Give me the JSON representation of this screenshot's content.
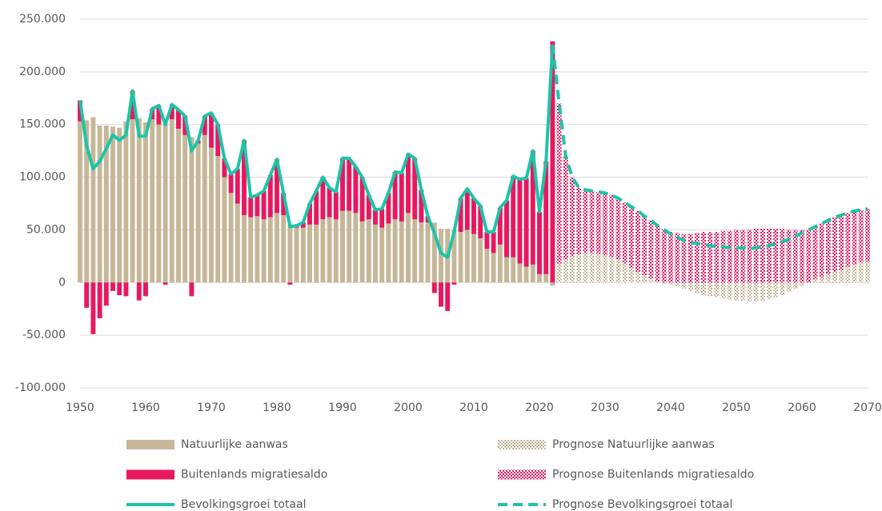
{
  "chart_data": {
    "type": "bar",
    "x": [
      1950,
      1951,
      1952,
      1953,
      1954,
      1955,
      1956,
      1957,
      1958,
      1959,
      1960,
      1961,
      1962,
      1963,
      1964,
      1965,
      1966,
      1967,
      1968,
      1969,
      1970,
      1971,
      1972,
      1973,
      1974,
      1975,
      1976,
      1977,
      1978,
      1979,
      1980,
      1981,
      1982,
      1983,
      1984,
      1985,
      1986,
      1987,
      1988,
      1989,
      1990,
      1991,
      1992,
      1993,
      1994,
      1995,
      1996,
      1997,
      1998,
      1999,
      2000,
      2001,
      2002,
      2003,
      2004,
      2005,
      2006,
      2007,
      2008,
      2009,
      2010,
      2011,
      2012,
      2013,
      2014,
      2015,
      2016,
      2017,
      2018,
      2019,
      2020,
      2021,
      2022,
      2023,
      2024,
      2025,
      2026,
      2027,
      2028,
      2029,
      2030,
      2031,
      2032,
      2033,
      2034,
      2035,
      2036,
      2037,
      2038,
      2039,
      2040,
      2041,
      2042,
      2043,
      2044,
      2045,
      2046,
      2047,
      2048,
      2049,
      2050,
      2051,
      2052,
      2053,
      2054,
      2055,
      2056,
      2057,
      2058,
      2059,
      2060,
      2061,
      2062,
      2063,
      2064,
      2065,
      2066,
      2067,
      2068,
      2069,
      2070
    ],
    "xlim": [
      1950,
      2070
    ],
    "xticks": [
      1950,
      1960,
      1970,
      1980,
      1990,
      2000,
      2010,
      2020,
      2030,
      2040,
      2050,
      2060,
      2070
    ],
    "ylim": [
      -100000,
      250000
    ],
    "yticks": [
      {
        "value": -100000,
        "label": "-100.000"
      },
      {
        "value": -50000,
        "label": "-50.000"
      },
      0,
      {
        "value": 50000,
        "label": "50.000"
      },
      {
        "value": 100000,
        "label": "100.000"
      },
      {
        "value": 150000,
        "label": "150.000"
      },
      {
        "value": 200000,
        "label": "200.000"
      },
      {
        "value": 250000,
        "label": "250.000"
      }
    ],
    "grid": true,
    "series": [
      {
        "name": "Natuurlijke aanwas",
        "color": "#c6b798",
        "mark": "bar",
        "pattern": false,
        "dashed": false,
        "values": [
          153000,
          154000,
          157000,
          149000,
          149000,
          148000,
          147000,
          153000,
          155000,
          156000,
          152000,
          155000,
          150000,
          152000,
          155000,
          146000,
          140000,
          138000,
          132000,
          140000,
          128000,
          120000,
          100000,
          85000,
          75000,
          64000,
          62000,
          63000,
          60000,
          62000,
          66000,
          64000,
          55000,
          52000,
          52000,
          55000,
          55000,
          60000,
          62000,
          60000,
          68000,
          68000,
          66000,
          58000,
          60000,
          55000,
          52000,
          56000,
          60000,
          58000,
          66000,
          60000,
          57000,
          57000,
          57000,
          51000,
          51000,
          50000,
          48000,
          50000,
          46000,
          42000,
          32000,
          28000,
          36000,
          24000,
          24000,
          18000,
          15000,
          17000,
          8000,
          8000,
          -3000,
          null,
          null,
          null,
          null,
          null,
          null,
          null,
          null,
          null,
          null,
          null,
          null,
          null,
          null,
          null,
          null,
          null,
          null,
          null,
          null,
          null,
          null,
          null,
          null,
          null,
          null,
          null,
          null,
          null,
          null,
          null,
          null,
          null,
          null,
          null,
          null,
          null,
          null,
          null,
          null,
          null,
          null,
          null,
          null,
          null,
          null,
          null,
          null
        ]
      },
      {
        "name": "Buitenlands migratiesaldo",
        "color": "#e8185f",
        "mark": "bar",
        "pattern": false,
        "dashed": false,
        "values": [
          20000,
          -24000,
          -49000,
          -34000,
          -22000,
          -8000,
          -12000,
          -13000,
          27000,
          -17000,
          -13000,
          10000,
          18000,
          -2000,
          14000,
          18000,
          18000,
          -13000,
          3000,
          18000,
          33000,
          30000,
          18000,
          18000,
          33000,
          71000,
          19000,
          20000,
          27000,
          40000,
          51000,
          21000,
          -2000,
          2000,
          5000,
          20000,
          32000,
          40000,
          28000,
          26000,
          50000,
          50000,
          44000,
          42000,
          23000,
          14000,
          18000,
          29000,
          45000,
          46000,
          56000,
          58000,
          31000,
          6000,
          -10000,
          -23000,
          -27000,
          -2000,
          32000,
          39000,
          34000,
          31000,
          16000,
          20000,
          35000,
          54000,
          77000,
          80000,
          84000,
          108000,
          59000,
          107000,
          229000,
          null,
          null,
          null,
          null,
          null,
          null,
          null,
          null,
          null,
          null,
          null,
          null,
          null,
          null,
          null,
          null,
          null,
          null,
          null,
          null,
          null,
          null,
          null,
          null,
          null,
          null,
          null,
          null,
          null,
          null,
          null,
          null,
          null,
          null,
          null,
          null,
          null,
          null,
          null,
          null,
          null,
          null,
          null,
          null,
          null,
          null,
          null,
          null
        ]
      },
      {
        "name": "Bevolkingsgroei totaal",
        "color": "#1dc4a8",
        "mark": "line",
        "pattern": false,
        "dashed": false,
        "values": [
          173000,
          130000,
          108000,
          115000,
          127000,
          140000,
          135000,
          140000,
          182000,
          139000,
          139000,
          165000,
          168000,
          150000,
          169000,
          164000,
          158000,
          125000,
          135000,
          158000,
          161000,
          150000,
          118000,
          103000,
          108000,
          135000,
          81000,
          83000,
          87000,
          102000,
          117000,
          85000,
          53000,
          54000,
          57000,
          75000,
          87000,
          100000,
          90000,
          86000,
          118000,
          118000,
          110000,
          100000,
          83000,
          69000,
          70000,
          85000,
          105000,
          104000,
          122000,
          118000,
          88000,
          63000,
          47000,
          28000,
          24000,
          48000,
          80000,
          89000,
          80000,
          73000,
          48000,
          48000,
          71000,
          78000,
          101000,
          98000,
          99000,
          125000,
          67000,
          115000,
          226000,
          null,
          null,
          null,
          null,
          null,
          null,
          null,
          null,
          null,
          null,
          null,
          null,
          null,
          null,
          null,
          null,
          null,
          null,
          null,
          null,
          null,
          null,
          null,
          null,
          null,
          null,
          null,
          null,
          null,
          null,
          null,
          null,
          null,
          null,
          null,
          null,
          null,
          null,
          null,
          null,
          null,
          null,
          null,
          null,
          null,
          null,
          null,
          null
        ]
      },
      {
        "name": "Prognose Natuurlijke aanwas",
        "color": "#c6b798",
        "mark": "bar",
        "pattern": true,
        "dashed": false,
        "values": [
          null,
          null,
          null,
          null,
          null,
          null,
          null,
          null,
          null,
          null,
          null,
          null,
          null,
          null,
          null,
          null,
          null,
          null,
          null,
          null,
          null,
          null,
          null,
          null,
          null,
          null,
          null,
          null,
          null,
          null,
          null,
          null,
          null,
          null,
          null,
          null,
          null,
          null,
          null,
          null,
          null,
          null,
          null,
          null,
          null,
          null,
          null,
          null,
          null,
          null,
          null,
          null,
          null,
          null,
          null,
          null,
          null,
          null,
          null,
          null,
          null,
          null,
          null,
          null,
          null,
          null,
          null,
          null,
          null,
          null,
          null,
          null,
          null,
          18000,
          22000,
          25000,
          27000,
          28000,
          28000,
          27000,
          26000,
          24000,
          22000,
          18000,
          14000,
          10000,
          7000,
          4000,
          1000,
          -1000,
          -2000,
          -4000,
          -6000,
          -8000,
          -10000,
          -12000,
          -13000,
          -14000,
          -15000,
          -16000,
          -17000,
          -17000,
          -18000,
          -18000,
          -17000,
          -16000,
          -14000,
          -12000,
          -9000,
          -6000,
          -3000,
          0,
          3000,
          5000,
          8000,
          10000,
          12000,
          15000,
          17000,
          19000,
          20000
        ]
      },
      {
        "name": "Prognose Buitenlands migratiesaldo",
        "color": "#e8185f",
        "mark": "bar",
        "pattern": true,
        "dashed": false,
        "values": [
          null,
          null,
          null,
          null,
          null,
          null,
          null,
          null,
          null,
          null,
          null,
          null,
          null,
          null,
          null,
          null,
          null,
          null,
          null,
          null,
          null,
          null,
          null,
          null,
          null,
          null,
          null,
          null,
          null,
          null,
          null,
          null,
          null,
          null,
          null,
          null,
          null,
          null,
          null,
          null,
          null,
          null,
          null,
          null,
          null,
          null,
          null,
          null,
          null,
          null,
          null,
          null,
          null,
          null,
          null,
          null,
          null,
          null,
          null,
          null,
          null,
          null,
          null,
          null,
          null,
          null,
          null,
          null,
          null,
          null,
          null,
          null,
          null,
          152000,
          98000,
          75000,
          63000,
          60000,
          59000,
          59000,
          59000,
          59000,
          58000,
          58000,
          58000,
          58000,
          56000,
          55000,
          53000,
          51000,
          48000,
          47000,
          46000,
          46000,
          47000,
          48000,
          48000,
          48000,
          49000,
          49000,
          50000,
          50000,
          50000,
          51000,
          51000,
          51000,
          51000,
          51000,
          50000,
          50000,
          50000,
          50000,
          50000,
          51000,
          51000,
          52000,
          52000,
          51000,
          51000,
          50000,
          50000
        ]
      },
      {
        "name": "Prognose Bevolkingsgroei totaal",
        "color": "#1dc4a8",
        "mark": "line",
        "pattern": false,
        "dashed": true,
        "values": [
          null,
          null,
          null,
          null,
          null,
          null,
          null,
          null,
          null,
          null,
          null,
          null,
          null,
          null,
          null,
          null,
          null,
          null,
          null,
          null,
          null,
          null,
          null,
          null,
          null,
          null,
          null,
          null,
          null,
          null,
          null,
          null,
          null,
          null,
          null,
          null,
          null,
          null,
          null,
          null,
          null,
          null,
          null,
          null,
          null,
          null,
          null,
          null,
          null,
          null,
          null,
          null,
          null,
          null,
          null,
          null,
          null,
          null,
          null,
          null,
          null,
          null,
          null,
          null,
          null,
          null,
          null,
          null,
          null,
          null,
          null,
          null,
          226000,
          170000,
          120000,
          100000,
          90000,
          88000,
          87000,
          86000,
          85000,
          83000,
          80000,
          76000,
          72000,
          68000,
          63000,
          59000,
          54000,
          50000,
          46000,
          43000,
          40000,
          38000,
          37000,
          36000,
          35000,
          34000,
          34000,
          33000,
          33000,
          33000,
          32000,
          33000,
          34000,
          35000,
          37000,
          39000,
          41000,
          44000,
          47000,
          50000,
          53000,
          56000,
          59000,
          62000,
          64000,
          66000,
          68000,
          69000,
          70000
        ]
      }
    ]
  }
}
